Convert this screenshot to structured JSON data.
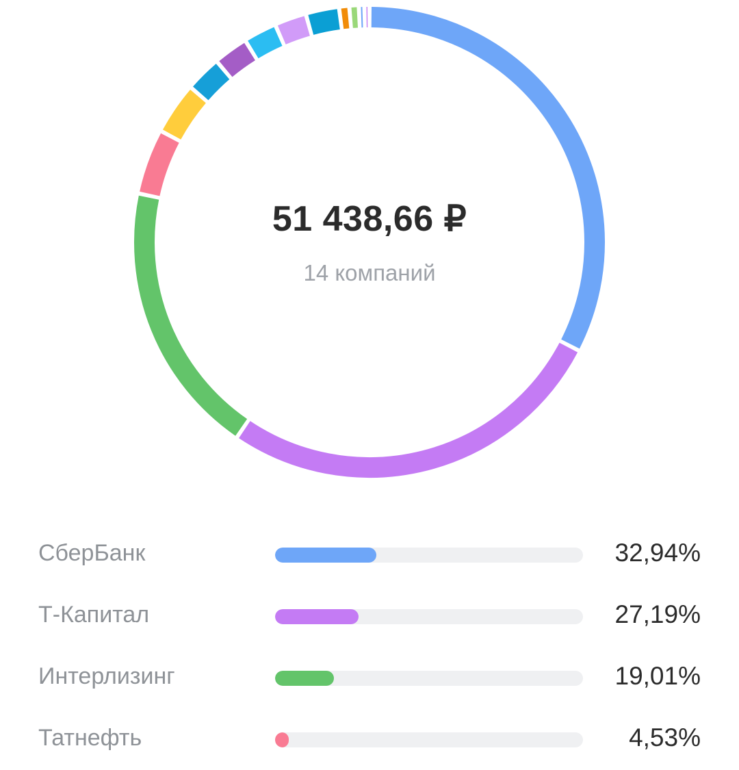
{
  "summary": {
    "total": "51 438,66 ₽",
    "companies": "14 компаний"
  },
  "chart_data": {
    "type": "pie",
    "slices": [
      {
        "name": "СберБанк",
        "value": 32.94,
        "color": "#6ea6f8"
      },
      {
        "name": "Т-Капитал",
        "value": 27.19,
        "color": "#c47bf4"
      },
      {
        "name": "Интерлизинг",
        "value": 19.01,
        "color": "#63c46a"
      },
      {
        "name": "Татнефть",
        "value": 4.53,
        "color": "#f97b93"
      },
      {
        "name": "",
        "value": 3.6,
        "color": "#ffcd3c"
      },
      {
        "name": "",
        "value": 2.5,
        "color": "#169fd8"
      },
      {
        "name": "",
        "value": 2.4,
        "color": "#a45dc6"
      },
      {
        "name": "",
        "value": 2.3,
        "color": "#2bbdf2"
      },
      {
        "name": "",
        "value": 2.2,
        "color": "#d19bf8"
      },
      {
        "name": "",
        "value": 2.3,
        "color": "#0b9fd4"
      },
      {
        "name": "",
        "value": 0.7,
        "color": "#f18c08"
      },
      {
        "name": "",
        "value": 0.65,
        "color": "#9ad879"
      },
      {
        "name": "",
        "value": 0.38,
        "color": "#6ea6f8"
      },
      {
        "name": "",
        "value": 0.35,
        "color": "#c47bf4"
      }
    ]
  },
  "legend": [
    {
      "name": "СберБанк",
      "percent": "32,94%",
      "value": 32.94,
      "color": "#6ea6f8"
    },
    {
      "name": "Т-Капитал",
      "percent": "27,19%",
      "value": 27.19,
      "color": "#c47bf4"
    },
    {
      "name": "Интерлизинг",
      "percent": "19,01%",
      "value": 19.01,
      "color": "#63c46a"
    },
    {
      "name": "Татнефть",
      "percent": "4,53%",
      "value": 4.53,
      "color": "#f97b93"
    }
  ]
}
